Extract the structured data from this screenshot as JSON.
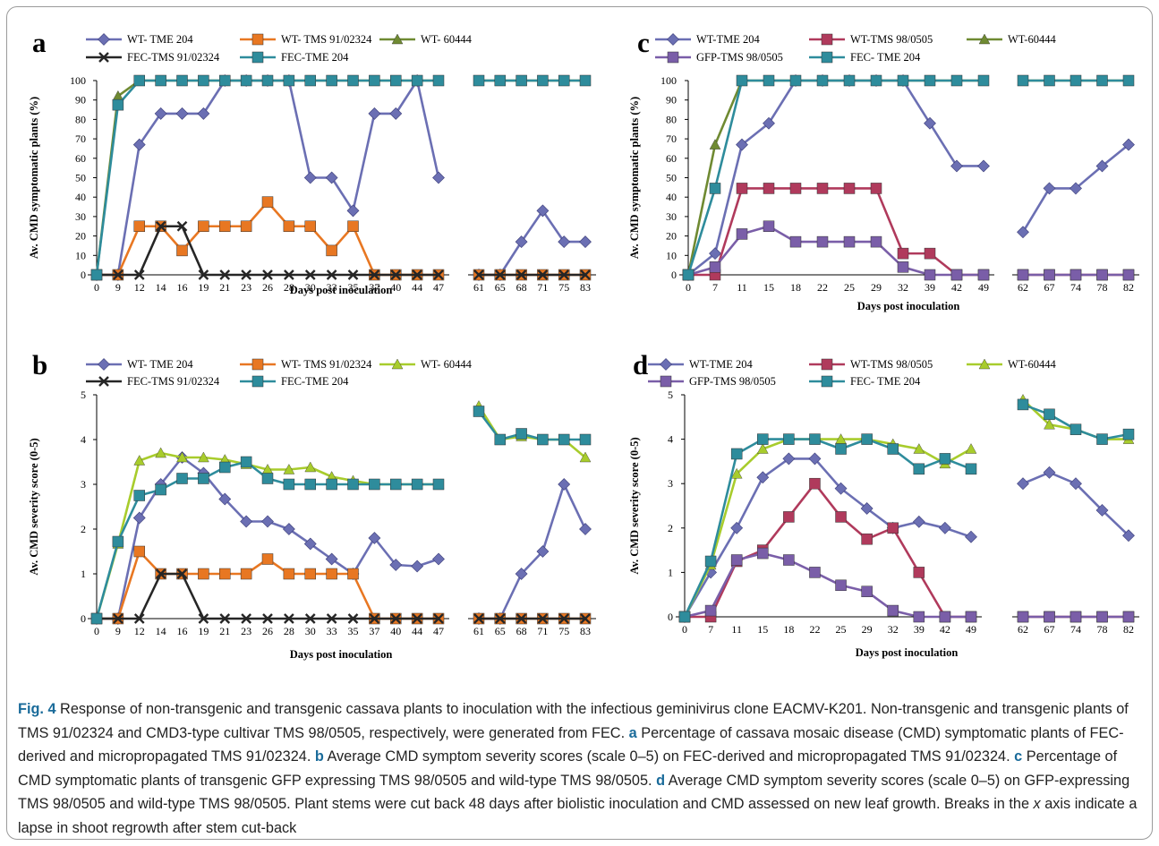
{
  "colors": {
    "wt_tme204": "#6b6fb3",
    "wt_tms91": "#e87722",
    "wt_60444_a": "#6f8a32",
    "wt_60444_b": "#a8cc2c",
    "fec_tms91": "#262626",
    "fec_tme204": "#2e8c9c",
    "wt_tms98": "#b03a5c",
    "gfp_tms98": "#7a5ea8",
    "caption_accent": "#1a6b9a"
  },
  "caption": {
    "fig_label": "Fig. 4",
    "part1": " Response of non-transgenic and transgenic cassava plants to inoculation with the infectious geminivirus clone EACMV-K201. Non-transgenic and transgenic plants of TMS 91/02324 and CMD3-type cultivar TMS 98/0505, respectively, were generated from FEC. ",
    "ref_a": "a",
    "part_a": " Percentage of cassava mosaic disease (CMD) symptomatic plants of FEC-derived and micropropagated TMS 91/02324. ",
    "ref_b": "b",
    "part_b": " Average CMD symptom severity scores (scale 0–5) on FEC-derived and micropropagated TMS 91/02324. ",
    "ref_c": "c",
    "part_c": " Percentage of CMD symptomatic plants of transgenic GFP expressing TMS 98/0505 and wild-type TMS 98/0505. ",
    "ref_d": "d",
    "part_d": " Average CMD symptom severity scores (scale 0–5) on GFP-expressing TMS 98/0505 and wild-type TMS 98/0505. Plant stems were cut back 48 days after biolistic inoculation and CMD assessed on new leaf growth. Breaks in the ",
    "x_italic": "x",
    "part_end": " axis indicate a lapse in shoot regrowth after stem cut-back"
  },
  "chart_data": [
    {
      "panel": "a",
      "type": "line",
      "xlabel": "Days post inoculation",
      "ylabel": "Av. CMD symptomatic plants (%)",
      "ylim": [
        0,
        100
      ],
      "yticks": [
        0,
        10,
        20,
        30,
        40,
        50,
        60,
        70,
        80,
        90,
        100
      ],
      "categories": [
        "0",
        "9",
        "12",
        "14",
        "16",
        "19",
        "21",
        "23",
        "26",
        "28",
        "30",
        "33",
        "35",
        "37",
        "40",
        "44",
        "47",
        "61",
        "65",
        "68",
        "71",
        "75",
        "83"
      ],
      "break_after_index": 16,
      "legend_rows": [
        [
          0,
          1,
          2
        ],
        [
          3,
          4
        ]
      ],
      "series": [
        {
          "name": "WT- TME 204",
          "color_key": "wt_tme204",
          "marker": "diamond",
          "values": [
            0,
            0,
            67,
            83,
            83,
            83,
            100,
            100,
            100,
            100,
            50,
            50,
            33,
            83,
            83,
            100,
            50,
            0,
            0,
            17,
            33,
            17,
            17
          ]
        },
        {
          "name": "WT- TMS 91/02324",
          "color_key": "wt_tms91",
          "marker": "square",
          "values": [
            0,
            0,
            25,
            25,
            12.5,
            25,
            25,
            25,
            37.5,
            25,
            25,
            12.5,
            25,
            0,
            0,
            0,
            0,
            0,
            0,
            0,
            0,
            0,
            0
          ]
        },
        {
          "name": "WT- 60444",
          "color_key": "wt_60444_a",
          "marker": "triangle",
          "values": [
            0,
            92,
            100,
            100,
            100,
            100,
            100,
            100,
            100,
            100,
            100,
            100,
            100,
            100,
            100,
            100,
            100,
            100,
            100,
            100,
            100,
            100,
            100
          ]
        },
        {
          "name": "FEC-TMS 91/02324",
          "color_key": "fec_tms91",
          "marker": "cross",
          "values": [
            0,
            0,
            0,
            25,
            25,
            0,
            0,
            0,
            0,
            0,
            0,
            0,
            0,
            0,
            0,
            0,
            0,
            0,
            0,
            0,
            0,
            0,
            0
          ]
        },
        {
          "name": "FEC-TME 204",
          "color_key": "fec_tme204",
          "marker": "square",
          "values": [
            0,
            87.5,
            100,
            100,
            100,
            100,
            100,
            100,
            100,
            100,
            100,
            100,
            100,
            100,
            100,
            100,
            100,
            100,
            100,
            100,
            100,
            100,
            100
          ]
        }
      ]
    },
    {
      "panel": "b",
      "type": "line",
      "xlabel": "Days post inoculation",
      "ylabel": "Av. CMD severity score (0-5)",
      "ylim": [
        0,
        5
      ],
      "yticks": [
        0,
        1,
        2,
        3,
        4,
        5
      ],
      "categories": [
        "0",
        "9",
        "12",
        "14",
        "16",
        "19",
        "21",
        "23",
        "26",
        "28",
        "30",
        "33",
        "35",
        "37",
        "40",
        "44",
        "47",
        "61",
        "65",
        "68",
        "71",
        "75",
        "83"
      ],
      "break_after_index": 16,
      "legend_rows": [
        [
          0,
          1,
          2
        ],
        [
          3,
          4
        ]
      ],
      "series": [
        {
          "name": "WT- TME 204",
          "color_key": "wt_tme204",
          "marker": "diamond",
          "values": [
            0,
            0,
            2.25,
            3,
            3.6,
            3.25,
            2.67,
            2.17,
            2.17,
            2,
            1.67,
            1.33,
            1,
            1.8,
            1.2,
            1.17,
            1.33,
            0,
            0,
            1,
            1.5,
            3,
            2
          ]
        },
        {
          "name": "WT- TMS 91/02324",
          "color_key": "wt_tms91",
          "marker": "square",
          "values": [
            0,
            0,
            1.5,
            1,
            1,
            1,
            1,
            1,
            1.33,
            1,
            1,
            1,
            1,
            0,
            0,
            0,
            0,
            0,
            0,
            0,
            0,
            0,
            0
          ]
        },
        {
          "name": "WT- 60444",
          "color_key": "wt_60444_b",
          "marker": "triangle",
          "values": [
            0,
            1.67,
            3.53,
            3.7,
            3.6,
            3.6,
            3.55,
            3.45,
            3.33,
            3.33,
            3.38,
            3.17,
            3.08,
            3,
            3,
            3,
            3,
            4.75,
            4,
            4.07,
            4,
            4,
            3.6
          ]
        },
        {
          "name": "FEC-TMS 91/02324",
          "color_key": "fec_tms91",
          "marker": "cross",
          "values": [
            0,
            0,
            0,
            1,
            1,
            0,
            0,
            0,
            0,
            0,
            0,
            0,
            0,
            0,
            0,
            0,
            0,
            0,
            0,
            0,
            0,
            0,
            0
          ]
        },
        {
          "name": "FEC-TME 204",
          "color_key": "fec_tme204",
          "marker": "square",
          "values": [
            0,
            1.72,
            2.75,
            2.88,
            3.13,
            3.13,
            3.38,
            3.5,
            3.13,
            3,
            3,
            3,
            3,
            3,
            3,
            3,
            3,
            4.63,
            4,
            4.13,
            4,
            4,
            4
          ]
        }
      ]
    },
    {
      "panel": "c",
      "type": "line",
      "xlabel": "Days post inoculation",
      "ylabel": "Av. CMD symptomatic plants (%)",
      "ylim": [
        0,
        100
      ],
      "yticks": [
        0,
        10,
        20,
        30,
        40,
        50,
        60,
        70,
        80,
        90,
        100
      ],
      "categories": [
        "0",
        "7",
        "11",
        "15",
        "18",
        "22",
        "25",
        "29",
        "32",
        "39",
        "42",
        "49",
        "62",
        "67",
        "74",
        "78",
        "82"
      ],
      "break_after_index": 11,
      "legend_rows": [
        [
          0,
          1,
          2
        ],
        [
          3,
          4
        ]
      ],
      "series": [
        {
          "name": "WT-TME 204",
          "color_key": "wt_tme204",
          "marker": "diamond",
          "values": [
            0,
            11,
            67,
            78,
            100,
            100,
            100,
            100,
            100,
            78,
            56,
            56,
            22,
            44.5,
            44.5,
            56,
            67
          ]
        },
        {
          "name": "WT-TMS 98/0505",
          "color_key": "wt_tms98",
          "marker": "square",
          "values": [
            0,
            0,
            44.5,
            44.5,
            44.5,
            44.5,
            44.5,
            44.5,
            11,
            11,
            0,
            0,
            0,
            0,
            0,
            0,
            0
          ]
        },
        {
          "name": "WT-60444",
          "color_key": "wt_60444_a",
          "marker": "triangle",
          "values": [
            0,
            67,
            100,
            100,
            100,
            100,
            100,
            100,
            100,
            100,
            100,
            100,
            100,
            100,
            100,
            100,
            100
          ]
        },
        {
          "name": "GFP-TMS 98/0505",
          "color_key": "gfp_tms98",
          "marker": "square",
          "values": [
            0,
            4,
            21,
            25,
            17,
            17,
            17,
            17,
            4,
            0,
            0,
            0,
            0,
            0,
            0,
            0,
            0
          ]
        },
        {
          "name": "FEC- TME 204",
          "color_key": "fec_tme204",
          "marker": "square",
          "values": [
            0,
            44.5,
            100,
            100,
            100,
            100,
            100,
            100,
            100,
            100,
            100,
            100,
            100,
            100,
            100,
            100,
            100
          ]
        }
      ]
    },
    {
      "panel": "d",
      "type": "line",
      "xlabel": "Days post inoculation",
      "ylabel": "Av. CMD severity score (0-5)",
      "ylim": [
        0,
        5
      ],
      "yticks": [
        0,
        1,
        2,
        3,
        4,
        5
      ],
      "categories": [
        "0",
        "7",
        "11",
        "15",
        "18",
        "22",
        "25",
        "29",
        "32",
        "39",
        "42",
        "49",
        "62",
        "67",
        "74",
        "78",
        "82"
      ],
      "break_after_index": 11,
      "legend_rows": [
        [
          0,
          1,
          2
        ],
        [
          3,
          4
        ]
      ],
      "series": [
        {
          "name": "WT-TME 204",
          "color_key": "wt_tme204",
          "marker": "diamond",
          "values": [
            0,
            1,
            2,
            3.14,
            3.56,
            3.56,
            2.89,
            2.44,
            2,
            2.14,
            2,
            1.8,
            3,
            3.25,
            3,
            2.4,
            1.83
          ]
        },
        {
          "name": "WT-TMS 98/0505",
          "color_key": "wt_tms98",
          "marker": "square",
          "values": [
            0,
            0,
            1.25,
            1.5,
            2.25,
            3,
            2.25,
            1.75,
            2,
            1,
            0,
            0,
            0,
            0,
            0,
            0,
            0
          ]
        },
        {
          "name": "WT-60444",
          "color_key": "wt_60444_b",
          "marker": "triangle",
          "values": [
            0,
            1.17,
            3.22,
            3.78,
            4,
            4,
            4,
            4,
            3.89,
            3.78,
            3.45,
            3.78,
            4.89,
            4.33,
            4.22,
            4,
            4
          ]
        },
        {
          "name": "GFP-TMS 98/0505",
          "color_key": "gfp_tms98",
          "marker": "square",
          "values": [
            0,
            0.14,
            1.28,
            1.43,
            1.28,
            1,
            0.71,
            0.57,
            0.14,
            0,
            0,
            0,
            0,
            0,
            0,
            0,
            0
          ]
        },
        {
          "name": "FEC- TME 204",
          "color_key": "fec_tme204",
          "marker": "square",
          "values": [
            0,
            1.25,
            3.67,
            4,
            4,
            4,
            3.78,
            4,
            3.78,
            3.33,
            3.56,
            3.33,
            4.78,
            4.56,
            4.22,
            4,
            4.11
          ]
        }
      ]
    }
  ]
}
